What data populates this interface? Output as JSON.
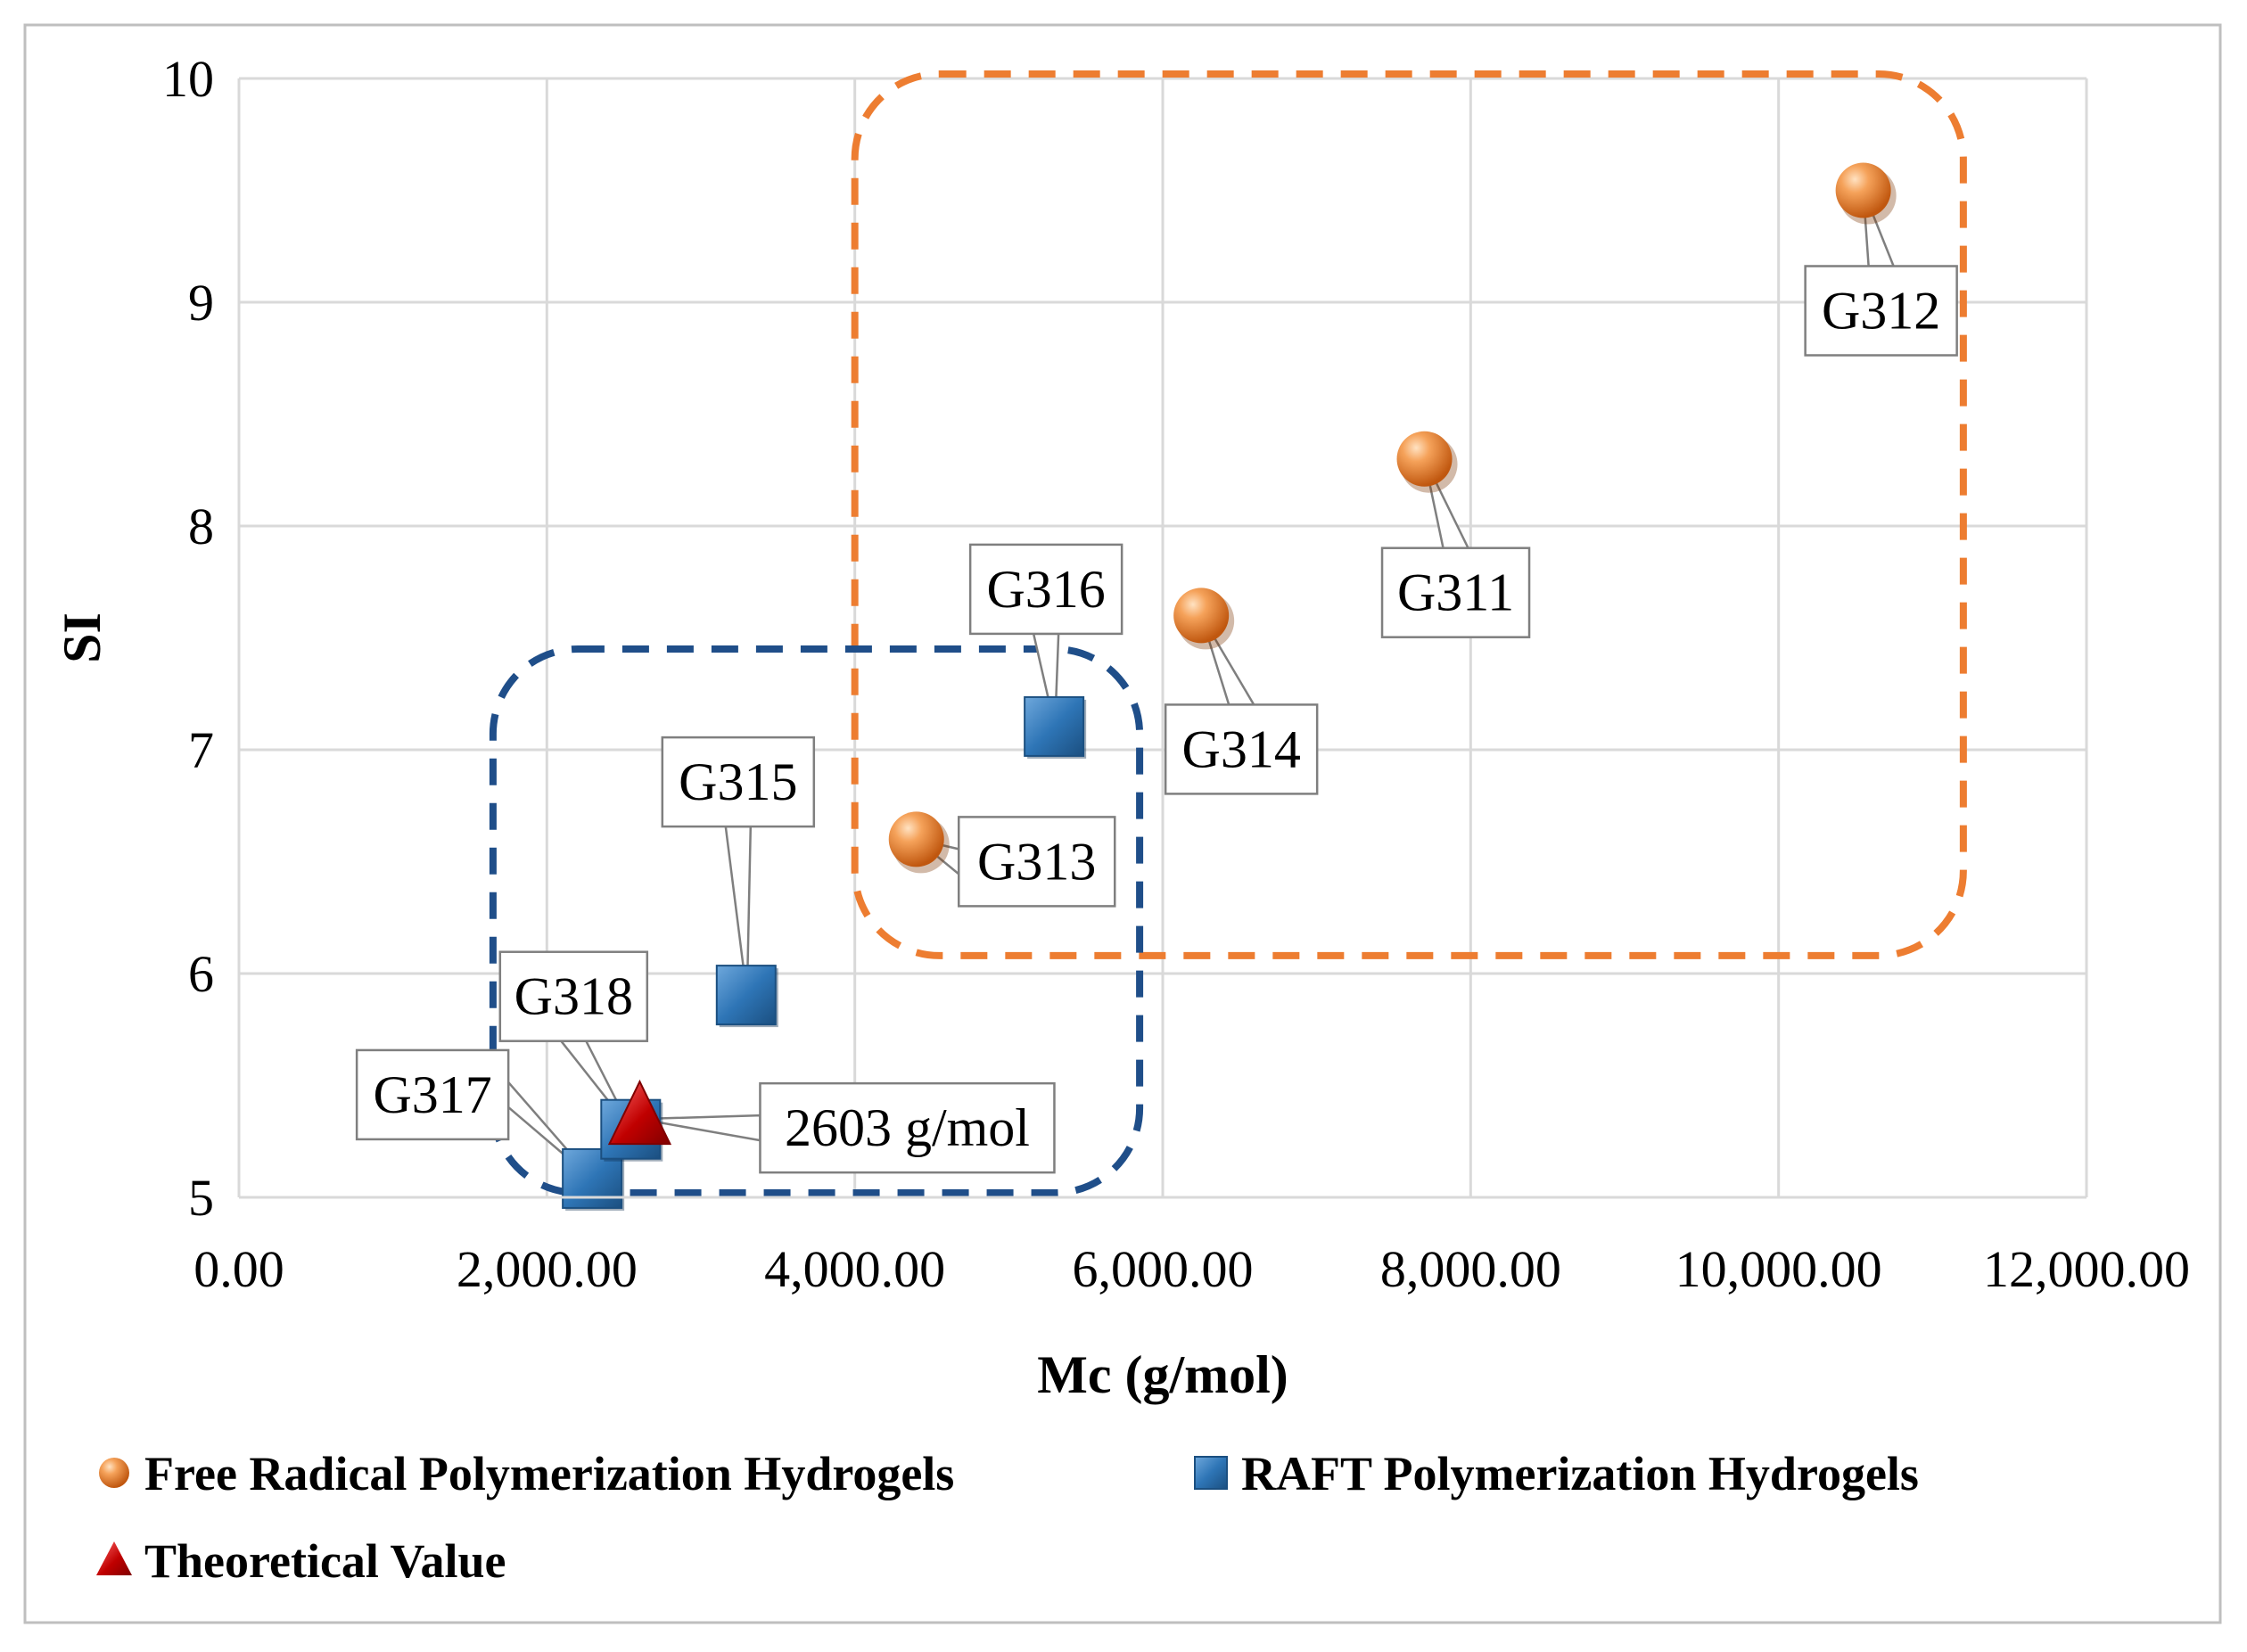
{
  "chart_data": {
    "type": "scatter",
    "xlabel": "Mc (g/mol)",
    "ylabel": "SI",
    "xlim": [
      0,
      12000
    ],
    "ylim": [
      5,
      10
    ],
    "xticks": [
      0,
      2000,
      4000,
      6000,
      8000,
      10000,
      12000
    ],
    "xtick_labels": [
      "0.00",
      "2,000.00",
      "4,000.00",
      "6,000.00",
      "8,000.00",
      "10,000.00",
      "12,000.00"
    ],
    "yticks": [
      5,
      6,
      7,
      8,
      9,
      10
    ],
    "ytick_labels": [
      "5",
      "6",
      "7",
      "8",
      "9",
      "10"
    ],
    "grid": true,
    "legend_position": "bottom",
    "series": [
      {
        "name": "Free Radical Polymerization Hydrogels",
        "marker": "sphere",
        "color": "#ED7D31",
        "points": [
          {
            "label": "G311",
            "x": 7700,
            "y": 8.3
          },
          {
            "label": "G312",
            "x": 10550,
            "y": 9.5
          },
          {
            "label": "G313",
            "x": 4400,
            "y": 6.6
          },
          {
            "label": "G314",
            "x": 6250,
            "y": 7.6
          }
        ]
      },
      {
        "name": "RAFT Polymerization Hydrogels",
        "marker": "square",
        "color": "#2E75B6",
        "points": [
          {
            "label": "G315",
            "x": 3300,
            "y": 5.9
          },
          {
            "label": "G316",
            "x": 5300,
            "y": 7.1
          },
          {
            "label": "G317",
            "x": 2300,
            "y": 5.08
          },
          {
            "label": "G318",
            "x": 2550,
            "y": 5.3
          }
        ]
      },
      {
        "name": "Theoretical Value",
        "marker": "triangle",
        "color": "#C00000",
        "points": [
          {
            "label": "2603 g/mol",
            "x": 2603,
            "y": 5.35
          }
        ]
      }
    ],
    "groups": [
      {
        "name": "free-radical-region",
        "color": "#ED7D31",
        "x_range": [
          4000,
          11200
        ],
        "y_range": [
          6.08,
          10.02
        ]
      },
      {
        "name": "raft-region",
        "color": "#1F4E89",
        "x_range": [
          1650,
          5850
        ],
        "y_range": [
          5.02,
          7.45
        ]
      }
    ]
  }
}
